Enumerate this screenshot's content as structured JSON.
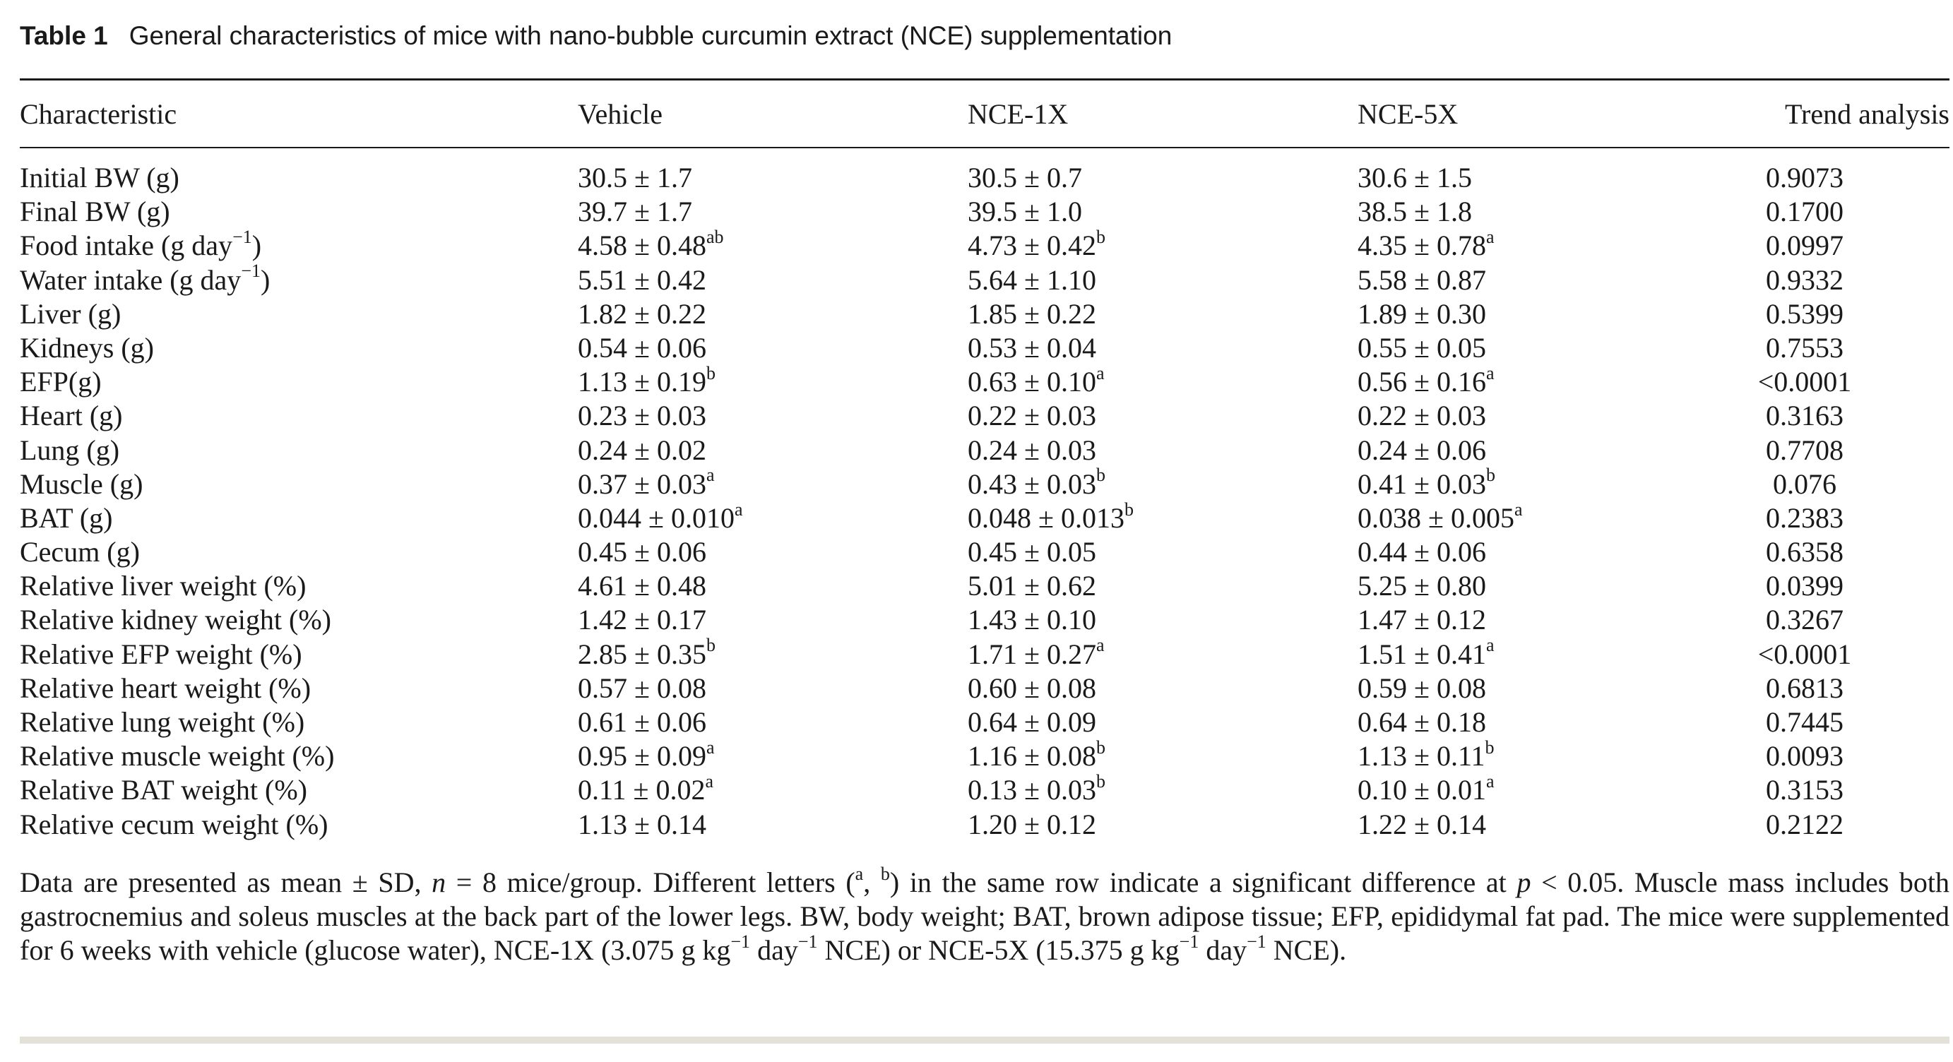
{
  "table": {
    "label": "Table 1",
    "title": "General characteristics of mice with nano-bubble curcumin extract (NCE) supplementation",
    "headers": [
      "Characteristic",
      "Vehicle",
      "NCE-1X",
      "NCE-5X",
      "Trend analysis"
    ],
    "rows": [
      {
        "name": "Initial BW (g)",
        "name_sup": "",
        "name_suffix": "",
        "vehicle": "30.5 ± 1.7",
        "vehicle_sup": "",
        "nce1x": "30.5 ± 0.7",
        "nce1x_sup": "",
        "nce5x": "30.6 ± 1.5",
        "nce5x_sup": "",
        "trend": "0.9073"
      },
      {
        "name": "Final BW (g)",
        "name_sup": "",
        "name_suffix": "",
        "vehicle": "39.7 ± 1.7",
        "vehicle_sup": "",
        "nce1x": "39.5 ± 1.0",
        "nce1x_sup": "",
        "nce5x": "38.5 ± 1.8",
        "nce5x_sup": "",
        "trend": "0.1700"
      },
      {
        "name": "Food intake (g day",
        "name_sup": "−1",
        "name_suffix": ")",
        "vehicle": "4.58 ± 0.48",
        "vehicle_sup": "ab",
        "nce1x": "4.73 ± 0.42",
        "nce1x_sup": "b",
        "nce5x": "4.35 ± 0.78",
        "nce5x_sup": "a",
        "trend": "0.0997"
      },
      {
        "name": "Water intake (g day",
        "name_sup": "−1",
        "name_suffix": ")",
        "vehicle": "5.51 ± 0.42",
        "vehicle_sup": "",
        "nce1x": "5.64 ± 1.10",
        "nce1x_sup": "",
        "nce5x": "5.58 ± 0.87",
        "nce5x_sup": "",
        "trend": "0.9332"
      },
      {
        "name": "Liver (g)",
        "name_sup": "",
        "name_suffix": "",
        "vehicle": "1.82 ± 0.22",
        "vehicle_sup": "",
        "nce1x": "1.85 ± 0.22",
        "nce1x_sup": "",
        "nce5x": "1.89 ± 0.30",
        "nce5x_sup": "",
        "trend": "0.5399"
      },
      {
        "name": "Kidneys (g)",
        "name_sup": "",
        "name_suffix": "",
        "vehicle": "0.54 ± 0.06",
        "vehicle_sup": "",
        "nce1x": "0.53 ± 0.04",
        "nce1x_sup": "",
        "nce5x": "0.55 ± 0.05",
        "nce5x_sup": "",
        "trend": "0.7553"
      },
      {
        "name": "EFP(g)",
        "name_sup": "",
        "name_suffix": "",
        "vehicle": "1.13 ± 0.19",
        "vehicle_sup": "b",
        "nce1x": "0.63 ± 0.10",
        "nce1x_sup": "a",
        "nce5x": "0.56 ± 0.16",
        "nce5x_sup": "a",
        "trend": "<0.0001"
      },
      {
        "name": "Heart (g)",
        "name_sup": "",
        "name_suffix": "",
        "vehicle": "0.23 ± 0.03",
        "vehicle_sup": "",
        "nce1x": "0.22 ± 0.03",
        "nce1x_sup": "",
        "nce5x": "0.22 ± 0.03",
        "nce5x_sup": "",
        "trend": "0.3163"
      },
      {
        "name": "Lung (g)",
        "name_sup": "",
        "name_suffix": "",
        "vehicle": "0.24 ± 0.02",
        "vehicle_sup": "",
        "nce1x": "0.24 ± 0.03",
        "nce1x_sup": "",
        "nce5x": "0.24 ± 0.06",
        "nce5x_sup": "",
        "trend": "0.7708"
      },
      {
        "name": "Muscle (g)",
        "name_sup": "",
        "name_suffix": "",
        "vehicle": "0.37 ± 0.03",
        "vehicle_sup": "a",
        "nce1x": "0.43 ± 0.03",
        "nce1x_sup": "b",
        "nce5x": "0.41 ± 0.03",
        "nce5x_sup": "b",
        "trend": "0.076"
      },
      {
        "name": "BAT (g)",
        "name_sup": "",
        "name_suffix": "",
        "vehicle": "0.044 ± 0.010",
        "vehicle_sup": "a",
        "nce1x": "0.048 ± 0.013",
        "nce1x_sup": "b",
        "nce5x": "0.038 ± 0.005",
        "nce5x_sup": "a",
        "trend": "0.2383"
      },
      {
        "name": "Cecum (g)",
        "name_sup": "",
        "name_suffix": "",
        "vehicle": "0.45 ± 0.06",
        "vehicle_sup": "",
        "nce1x": "0.45 ± 0.05",
        "nce1x_sup": "",
        "nce5x": "0.44 ± 0.06",
        "nce5x_sup": "",
        "trend": "0.6358"
      },
      {
        "name": "Relative liver weight (%)",
        "name_sup": "",
        "name_suffix": "",
        "vehicle": "4.61 ± 0.48",
        "vehicle_sup": "",
        "nce1x": "5.01 ± 0.62",
        "nce1x_sup": "",
        "nce5x": "5.25 ± 0.80",
        "nce5x_sup": "",
        "trend": "0.0399"
      },
      {
        "name": "Relative kidney weight (%)",
        "name_sup": "",
        "name_suffix": "",
        "vehicle": "1.42 ± 0.17",
        "vehicle_sup": "",
        "nce1x": "1.43 ± 0.10",
        "nce1x_sup": "",
        "nce5x": "1.47 ± 0.12",
        "nce5x_sup": "",
        "trend": "0.3267"
      },
      {
        "name": "Relative EFP weight (%)",
        "name_sup": "",
        "name_suffix": "",
        "vehicle": "2.85 ± 0.35",
        "vehicle_sup": "b",
        "nce1x": "1.71 ± 0.27",
        "nce1x_sup": "a",
        "nce5x": "1.51 ± 0.41",
        "nce5x_sup": "a",
        "trend": "<0.0001"
      },
      {
        "name": "Relative heart weight (%)",
        "name_sup": "",
        "name_suffix": "",
        "vehicle": "0.57 ± 0.08",
        "vehicle_sup": "",
        "nce1x": "0.60 ± 0.08",
        "nce1x_sup": "",
        "nce5x": "0.59 ± 0.08",
        "nce5x_sup": "",
        "trend": "0.6813"
      },
      {
        "name": "Relative lung weight (%)",
        "name_sup": "",
        "name_suffix": "",
        "vehicle": "0.61 ± 0.06",
        "vehicle_sup": "",
        "nce1x": "0.64 ± 0.09",
        "nce1x_sup": "",
        "nce5x": "0.64 ± 0.18",
        "nce5x_sup": "",
        "trend": "0.7445"
      },
      {
        "name": "Relative muscle weight (%)",
        "name_sup": "",
        "name_suffix": "",
        "vehicle": "0.95 ± 0.09",
        "vehicle_sup": "a",
        "nce1x": "1.16 ± 0.08",
        "nce1x_sup": "b",
        "nce5x": "1.13 ± 0.11",
        "nce5x_sup": "b",
        "trend": "0.0093"
      },
      {
        "name": "Relative BAT weight (%)",
        "name_sup": "",
        "name_suffix": "",
        "vehicle": "0.11 ± 0.02",
        "vehicle_sup": "a",
        "nce1x": "0.13 ± 0.03",
        "nce1x_sup": "b",
        "nce5x": "0.10 ± 0.01",
        "nce5x_sup": "a",
        "trend": "0.3153"
      },
      {
        "name": "Relative cecum weight (%)",
        "name_sup": "",
        "name_suffix": "",
        "vehicle": "1.13 ± 0.14",
        "vehicle_sup": "",
        "nce1x": "1.20 ± 0.12",
        "nce1x_sup": "",
        "nce5x": "1.22 ± 0.14",
        "nce5x_sup": "",
        "trend": "0.2122"
      }
    ]
  },
  "footnote": {
    "p1": "Data are presented as mean ± SD, ",
    "n": "n",
    "p2": " = 8 mice/group. Different letters (",
    "sup_a": "a",
    "p3": ", ",
    "sup_b": "b",
    "p4": ") in the same row indicate a significant difference at ",
    "p": "p",
    "p5": " < 0.05. Muscle mass includes both gastrocnemius and soleus muscles at the back part of the lower legs. BW, body weight; BAT, brown adipose tissue; EFP, epididymal fat pad. The mice were supplemented for 6 weeks with vehicle (glucose water), NCE-1X (3.075 g kg",
    "sup1": "−1",
    "p6": " day",
    "sup2": "−1",
    "p7": " NCE) or NCE-5X (15.375 g kg",
    "sup3": "−1",
    "p8": " day",
    "sup4": "−1",
    "p9": " NCE)."
  }
}
